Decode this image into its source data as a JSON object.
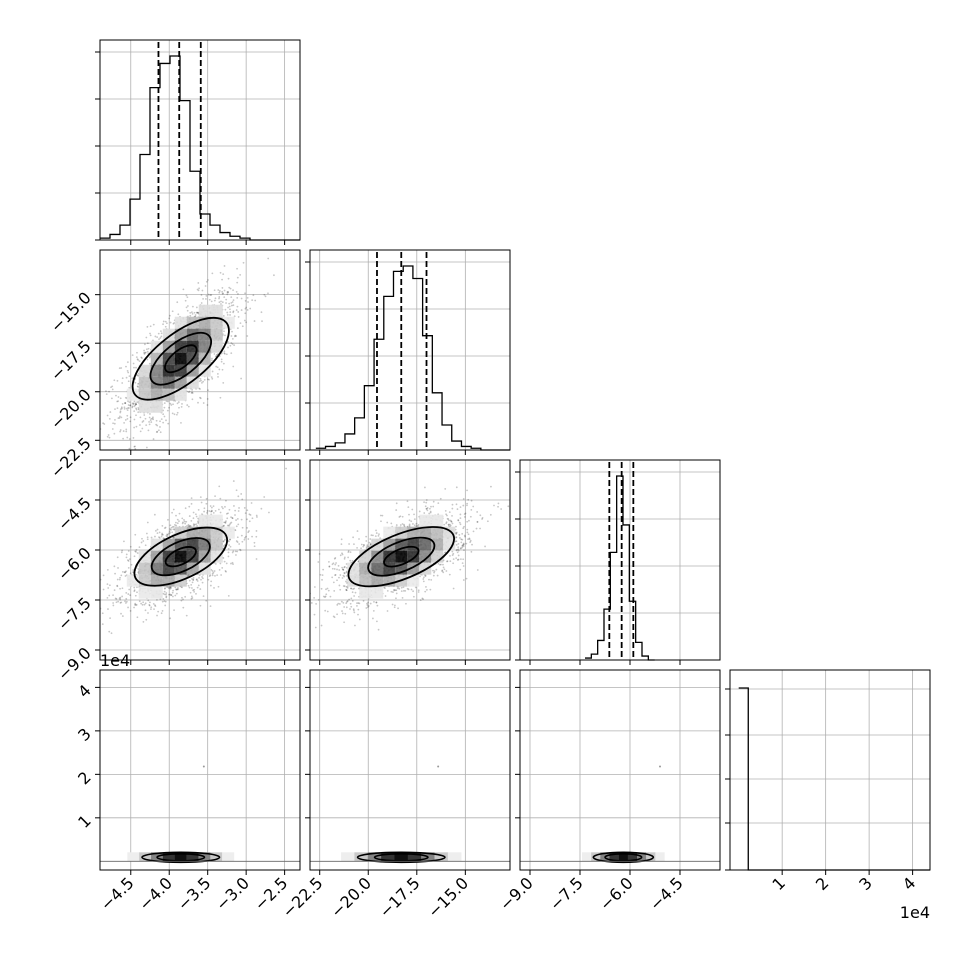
{
  "chart_data": {
    "type": "corner",
    "parameters": [
      {
        "index": 0,
        "range": [
          -4.9,
          -2.3
        ],
        "ticks": [
          -4.5,
          -4.0,
          -3.5,
          -3.0,
          -2.5
        ],
        "tick_labels": [
          "−4.5",
          "−4.0",
          "−3.5",
          "−3.0",
          "−2.5"
        ],
        "quantiles": [
          -4.14,
          -3.87,
          -3.59
        ],
        "histogram": {
          "start": -4.9,
          "bin_width": 0.13,
          "counts": [
            1,
            3,
            8,
            22,
            46,
            82,
            95,
            99,
            75,
            37,
            14,
            8,
            4,
            2,
            1,
            0,
            0,
            0,
            0,
            0
          ]
        },
        "blob": {
          "mean": -3.85,
          "sd": 0.28
        }
      },
      {
        "index": 1,
        "range": [
          -23.0,
          -12.7
        ],
        "ticks": [
          -22.5,
          -20.0,
          -17.5,
          -15.0
        ],
        "tick_labels": [
          "−22.5",
          "−20.0",
          "−17.5",
          "−15.0"
        ],
        "quantiles": [
          -19.55,
          -18.3,
          -17.0
        ],
        "histogram": {
          "start": -22.7,
          "bin_width": 0.5,
          "counts": [
            1,
            2,
            4,
            9,
            18,
            36,
            62,
            86,
            100,
            103,
            96,
            64,
            32,
            14,
            5,
            2,
            1,
            0,
            0,
            0
          ]
        },
        "blob": {
          "mean": -18.3,
          "sd": 1.25
        }
      },
      {
        "index": 2,
        "range": [
          -9.3,
          -3.3
        ],
        "ticks": [
          -9.0,
          -7.5,
          -6.0,
          -4.5
        ],
        "tick_labels": [
          "−9.0",
          "−7.5",
          "−6.0",
          "−4.5"
        ],
        "quantiles": [
          -6.62,
          -6.25,
          -5.9
        ],
        "histogram": {
          "start": -7.35,
          "bin_width": 0.19,
          "counts": [
            1,
            3,
            10,
            26,
            55,
            94,
            69,
            30,
            9,
            2,
            0
          ]
        },
        "blob": {
          "mean": -6.2,
          "sd": 0.5
        }
      },
      {
        "index": 3,
        "range": [
          -2000,
          44000
        ],
        "ticks": [
          10000,
          20000,
          30000,
          40000
        ],
        "tick_labels": [
          "1",
          "2",
          "3",
          "4"
        ],
        "offset_label": "1e4",
        "histogram": {
          "start": 0,
          "bin_width": 2200,
          "counts": [
            40000,
            1,
            0,
            0,
            0,
            0,
            0,
            0,
            0,
            0,
            0,
            0,
            0,
            0,
            0,
            0,
            0,
            0,
            0,
            1
          ]
        }
      }
    ],
    "pairs": [
      {
        "x": 0,
        "y": 1,
        "correlation": 0.7
      },
      {
        "x": 0,
        "y": 2,
        "correlation": 0.6
      },
      {
        "x": 1,
        "y": 2,
        "correlation": 0.6
      },
      {
        "x": 0,
        "y": 3,
        "outlier": [
          -3.55,
          21800
        ]
      },
      {
        "x": 1,
        "y": 3,
        "outlier": [
          -16.4,
          21800
        ]
      },
      {
        "x": 2,
        "y": 3,
        "outlier": [
          -5.1,
          21800
        ]
      }
    ],
    "grid": true
  }
}
